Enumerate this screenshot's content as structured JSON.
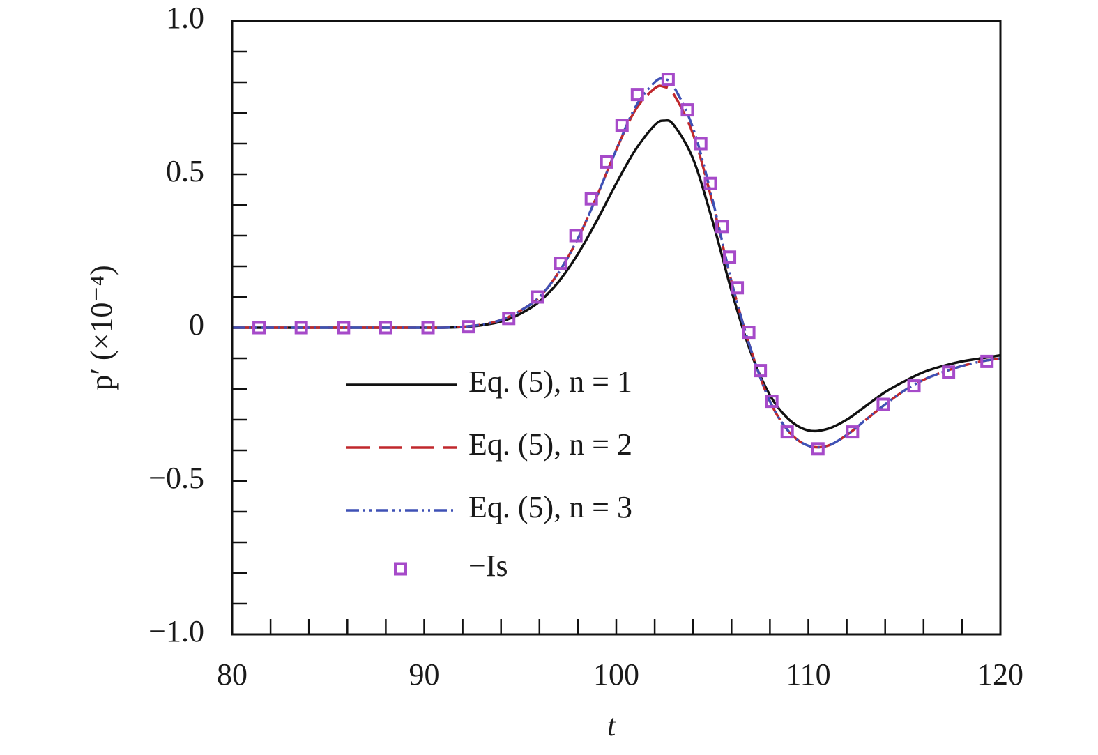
{
  "chart_data": {
    "type": "line",
    "xlabel": "t",
    "ylabel": "p′ (×10⁻⁴)",
    "xlim": [
      80,
      120
    ],
    "ylim": [
      -1,
      1
    ],
    "xticks": [
      80,
      90,
      100,
      110,
      120
    ],
    "xminorticks": [
      82,
      84,
      86,
      88,
      92,
      94,
      96,
      98,
      102,
      104,
      106,
      108,
      112,
      114,
      116,
      118
    ],
    "yticks": [
      {
        "value": -1,
        "label": "−1.0"
      },
      {
        "value": -0.5,
        "label": "−0.5"
      },
      0,
      {
        "value": 0.5,
        "label": "0.5"
      },
      {
        "value": 1,
        "label": "1.0"
      }
    ],
    "yminorticks": [
      -0.9,
      -0.8,
      -0.7,
      -0.6,
      -0.4,
      -0.3,
      -0.2,
      -0.1,
      0.1,
      0.2,
      0.3,
      0.4,
      0.6,
      0.7,
      0.8,
      0.9
    ],
    "grid": false,
    "x": [
      80,
      82,
      84,
      86,
      88,
      90,
      91,
      92,
      93,
      94,
      95,
      96,
      97,
      98,
      99,
      100,
      101,
      102,
      102.5,
      103,
      104,
      105,
      106,
      107,
      108,
      109,
      110,
      111,
      112,
      113,
      114,
      115,
      116,
      117,
      118,
      119,
      120
    ],
    "series": [
      {
        "name": "Eq. (5), n = 1",
        "color": "#111111",
        "dash": "solid",
        "values": [
          0,
          0,
          0,
          0,
          0,
          0,
          0,
          0.002,
          0.008,
          0.02,
          0.045,
          0.085,
          0.15,
          0.24,
          0.35,
          0.47,
          0.58,
          0.66,
          0.675,
          0.66,
          0.55,
          0.35,
          0.12,
          -0.08,
          -0.22,
          -0.3,
          -0.335,
          -0.33,
          -0.3,
          -0.255,
          -0.21,
          -0.175,
          -0.145,
          -0.125,
          -0.11,
          -0.1,
          -0.09
        ]
      },
      {
        "name": "Eq. (5), n = 2",
        "color": "#c0282d",
        "dash": "dashed",
        "values": [
          0,
          0,
          0,
          0,
          0,
          0,
          0,
          0.003,
          0.01,
          0.025,
          0.055,
          0.1,
          0.18,
          0.29,
          0.43,
          0.58,
          0.71,
          0.78,
          0.785,
          0.76,
          0.63,
          0.41,
          0.15,
          -0.07,
          -0.24,
          -0.34,
          -0.385,
          -0.385,
          -0.35,
          -0.3,
          -0.25,
          -0.205,
          -0.17,
          -0.145,
          -0.125,
          -0.11,
          -0.1
        ]
      },
      {
        "name": "Eq. (5), n = 3",
        "color": "#3f51b5",
        "dash": "dashdotdot",
        "values": [
          0,
          0,
          0,
          0,
          0,
          0,
          0,
          0.003,
          0.01,
          0.025,
          0.055,
          0.1,
          0.18,
          0.29,
          0.43,
          0.58,
          0.72,
          0.8,
          0.81,
          0.785,
          0.65,
          0.42,
          0.15,
          -0.07,
          -0.24,
          -0.34,
          -0.385,
          -0.385,
          -0.35,
          -0.3,
          -0.25,
          -0.205,
          -0.17,
          -0.145,
          -0.125,
          -0.11,
          -0.1
        ]
      },
      {
        "name": "−Is",
        "color": "#a64ac9",
        "marker": "square",
        "x": [
          81.4,
          83.6,
          85.8,
          88,
          90.2,
          92.3,
          94.4,
          95.9,
          97.1,
          97.9,
          98.7,
          99.5,
          100.3,
          101.1,
          102.7,
          103.7,
          104.4,
          104.9,
          105.5,
          105.9,
          106.3,
          106.9,
          107.5,
          108.1,
          108.9,
          110.5,
          112.3,
          113.9,
          115.5,
          117.3,
          119.3
        ],
        "values": [
          0,
          0,
          0,
          0,
          0,
          0.003,
          0.03,
          0.1,
          0.21,
          0.3,
          0.42,
          0.54,
          0.66,
          0.76,
          0.81,
          0.71,
          0.6,
          0.47,
          0.33,
          0.23,
          0.13,
          -0.015,
          -0.14,
          -0.24,
          -0.34,
          -0.395,
          -0.34,
          -0.25,
          -0.19,
          -0.145,
          -0.11
        ]
      }
    ]
  }
}
